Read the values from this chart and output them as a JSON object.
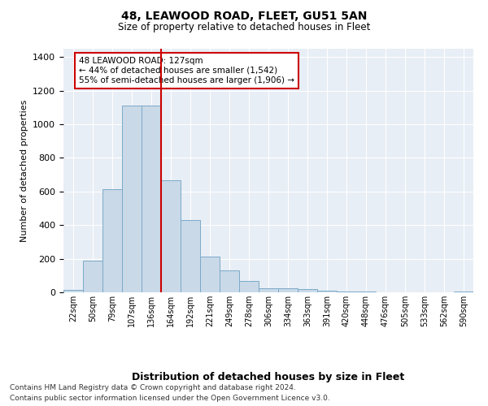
{
  "title": "48, LEAWOOD ROAD, FLEET, GU51 5AN",
  "subtitle": "Size of property relative to detached houses in Fleet",
  "xlabel": "Distribution of detached houses by size in Fleet",
  "ylabel": "Number of detached properties",
  "bar_labels": [
    "22sqm",
    "50sqm",
    "79sqm",
    "107sqm",
    "136sqm",
    "164sqm",
    "192sqm",
    "221sqm",
    "249sqm",
    "278sqm",
    "306sqm",
    "334sqm",
    "363sqm",
    "391sqm",
    "420sqm",
    "448sqm",
    "476sqm",
    "505sqm",
    "533sqm",
    "562sqm",
    "590sqm"
  ],
  "bar_values": [
    15,
    190,
    615,
    1110,
    1110,
    665,
    430,
    215,
    130,
    70,
    25,
    25,
    20,
    10,
    5,
    3,
    2,
    1,
    1,
    0,
    3
  ],
  "bar_color": "#c9d9e8",
  "bar_edgecolor": "#7aaac8",
  "red_line_x": 4.5,
  "annotation_text": "48 LEAWOOD ROAD: 127sqm\n← 44% of detached houses are smaller (1,542)\n55% of semi-detached houses are larger (1,906) →",
  "annotation_box_color": "#ffffff",
  "annotation_box_edgecolor": "#cc0000",
  "ylim": [
    0,
    1450
  ],
  "yticks": [
    0,
    200,
    400,
    600,
    800,
    1000,
    1200,
    1400
  ],
  "footer1": "Contains HM Land Registry data © Crown copyright and database right 2024.",
  "footer2": "Contains public sector information licensed under the Open Government Licence v3.0.",
  "plot_bg_color": "#e8eef5"
}
